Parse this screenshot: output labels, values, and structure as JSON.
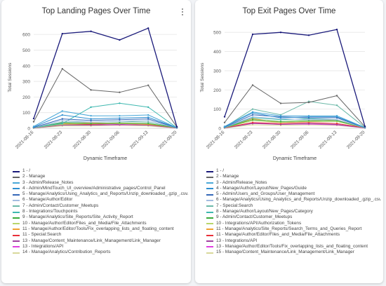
{
  "chart_data": [
    {
      "type": "line",
      "title": "Top Landing Pages Over Time",
      "xlabel": "Dynamic Timeframe",
      "ylabel": "Total Sessions",
      "x": [
        "2021-08-16",
        "2021-08-23",
        "2021-08-30",
        "2021-09-06",
        "2021-09-13",
        "2021-09-20"
      ],
      "ylim": [
        0,
        650
      ],
      "yticks": [
        0,
        100,
        200,
        300,
        400,
        500,
        600
      ],
      "legend_position": "bottom",
      "series": [
        {
          "name": "1 - /",
          "color": "#1a1a7a",
          "values": [
            62,
            605,
            620,
            565,
            640,
            10
          ]
        },
        {
          "name": "2 - Manage",
          "color": "#666666",
          "values": [
            42,
            380,
            245,
            230,
            275,
            8
          ]
        },
        {
          "name": "3 - Admin/Release_Notes",
          "color": "#4aa8d8",
          "values": [
            12,
            110,
            80,
            80,
            85,
            4
          ]
        },
        {
          "name": "4 - Admin/MindTouch_UI_overview/Administrative_pages/Control_Panel",
          "color": "#2f8fd0",
          "values": [
            8,
            85,
            60,
            65,
            70,
            4
          ]
        },
        {
          "name": "5 - Manage/Analytics/Using_Analytics_and_Reports/Unzip_downloaded_.gzip_.csv...",
          "color": "#3568b8",
          "values": [
            6,
            60,
            50,
            55,
            60,
            3
          ]
        },
        {
          "name": "6 - Manage/Author/Editor",
          "color": "#a3bce0",
          "values": [
            5,
            50,
            40,
            45,
            50,
            3
          ]
        },
        {
          "name": "7 - Admin/Contact/Customer_Meetups",
          "color": "#6cb9a8",
          "values": [
            5,
            40,
            40,
            45,
            40,
            3
          ]
        },
        {
          "name": "8 - Integrations/Touchpoints",
          "color": "#3fb8b0",
          "values": [
            4,
            30,
            135,
            160,
            135,
            4
          ]
        },
        {
          "name": "9 - Manage/Analytics/Site_Reports/Site_Activity_Report",
          "color": "#3aaa3a",
          "values": [
            4,
            35,
            30,
            35,
            30,
            3
          ]
        },
        {
          "name": "10 - Manage/Author/Editor/Files_and_Media/File_Attachments",
          "color": "#b7d66a",
          "values": [
            3,
            25,
            30,
            30,
            30,
            3
          ]
        },
        {
          "name": "11 - Manage/Author/Editor/Tools/Fix_overlapping_lists_and_floating_content",
          "color": "#f0a030",
          "values": [
            3,
            30,
            35,
            30,
            25,
            3
          ]
        },
        {
          "name": "11 - Special:Search",
          "color": "#e8303a",
          "values": [
            3,
            25,
            25,
            30,
            25,
            3
          ]
        },
        {
          "name": "13 - Manage/Content_Maintenance/Link_Management/Link_Manager",
          "color": "#a040a0",
          "values": [
            2,
            20,
            20,
            25,
            20,
            2
          ]
        },
        {
          "name": "13 - Integrations/API",
          "color": "#e040e0",
          "values": [
            2,
            22,
            20,
            22,
            20,
            2
          ]
        },
        {
          "name": "14 - Manage/Analytics/Contribution_Reports",
          "color": "#d8d89a",
          "values": [
            2,
            15,
            15,
            18,
            15,
            2
          ]
        }
      ]
    },
    {
      "type": "line",
      "title": "Top Exit Pages Over Time",
      "xlabel": "Dynamic Timeframe",
      "ylabel": "Total Sessions",
      "x": [
        "2021-08-16",
        "2021-08-23",
        "2021-08-30",
        "2021-09-06",
        "2021-09-13",
        "2021-09-20"
      ],
      "ylim": [
        0,
        530
      ],
      "yticks": [
        0,
        100,
        200,
        300,
        400,
        500
      ],
      "legend_position": "bottom",
      "series": [
        {
          "name": "1 - /",
          "color": "#1a1a7a",
          "values": [
            60,
            490,
            500,
            485,
            515,
            10
          ]
        },
        {
          "name": "2 - Manage",
          "color": "#666666",
          "values": [
            30,
            225,
            130,
            135,
            170,
            8
          ]
        },
        {
          "name": "3 - Admin/Release_Notes",
          "color": "#4aa8d8",
          "values": [
            10,
            85,
            65,
            65,
            65,
            4
          ]
        },
        {
          "name": "4 - Manage/Author/Layout/New_Pages/Guide",
          "color": "#2f8fd0",
          "values": [
            8,
            80,
            55,
            60,
            60,
            4
          ]
        },
        {
          "name": "5 - Admin/Users_and_Groups/User_Management",
          "color": "#3568b8",
          "values": [
            6,
            70,
            60,
            55,
            55,
            3
          ]
        },
        {
          "name": "6 - Manage/Analytics/Using_Analytics_and_Reports/Unzip_downloaded_.gzip_.csv...",
          "color": "#a3bce0",
          "values": [
            5,
            60,
            50,
            45,
            45,
            3
          ]
        },
        {
          "name": "7 - Special:Search",
          "color": "#6cb9a8",
          "values": [
            5,
            100,
            70,
            140,
            120,
            4
          ]
        },
        {
          "name": "8 - Manage/Author/Layout/New_Pages/Category",
          "color": "#3fb8b0",
          "values": [
            4,
            55,
            45,
            50,
            45,
            3
          ]
        },
        {
          "name": "9 - Admin/Contact/Customer_Meetups",
          "color": "#3aaa3a",
          "values": [
            4,
            45,
            35,
            40,
            40,
            3
          ]
        },
        {
          "name": "10 - Integrations/API/Authorization_Tokens",
          "color": "#b7d66a",
          "values": [
            3,
            40,
            30,
            35,
            35,
            3
          ]
        },
        {
          "name": "11 - Manage/Analytics/Site_Reports/Search_Terms_and_Queries_Report",
          "color": "#f0a030",
          "values": [
            3,
            50,
            30,
            35,
            45,
            3
          ]
        },
        {
          "name": "11 - Manage/Author/Editor/Files_and_Media/File_Attachments",
          "color": "#e8303a",
          "values": [
            3,
            30,
            25,
            30,
            25,
            3
          ]
        },
        {
          "name": "13 - Integrations/API",
          "color": "#a040a0",
          "values": [
            2,
            25,
            20,
            25,
            20,
            2
          ]
        },
        {
          "name": "13 - Manage/Author/Editor/Tools/Fix_overlapping_lists_and_floating_content",
          "color": "#e040e0",
          "values": [
            2,
            28,
            20,
            22,
            18,
            2
          ]
        },
        {
          "name": "15 - Manage/Content_Maintenance/Link_Management/Link_Manager",
          "color": "#d8d89a",
          "values": [
            2,
            18,
            15,
            18,
            15,
            2
          ]
        }
      ]
    }
  ],
  "menu_icon": "kebab-menu-icon"
}
